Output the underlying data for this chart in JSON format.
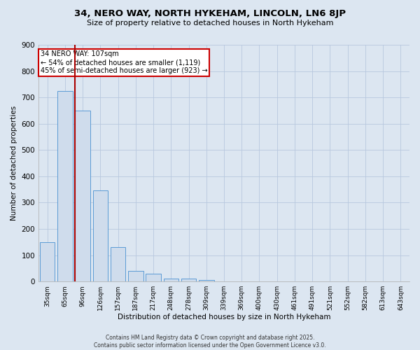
{
  "title1": "34, NERO WAY, NORTH HYKEHAM, LINCOLN, LN6 8JP",
  "title2": "Size of property relative to detached houses in North Hykeham",
  "xlabel": "Distribution of detached houses by size in North Hykeham",
  "ylabel": "Number of detached properties",
  "categories": [
    "35sqm",
    "65sqm",
    "96sqm",
    "126sqm",
    "157sqm",
    "187sqm",
    "217sqm",
    "248sqm",
    "278sqm",
    "309sqm",
    "339sqm",
    "369sqm",
    "400sqm",
    "430sqm",
    "461sqm",
    "491sqm",
    "521sqm",
    "552sqm",
    "582sqm",
    "613sqm",
    "643sqm"
  ],
  "values": [
    150,
    725,
    650,
    345,
    130,
    40,
    30,
    12,
    10,
    5,
    0,
    0,
    0,
    0,
    0,
    0,
    0,
    0,
    0,
    0,
    0
  ],
  "bar_color": "#cfdcec",
  "bar_edge_color": "#5b9bd5",
  "grid_color": "#b8c8de",
  "bg_color": "#dce6f1",
  "vline_color": "#aa0000",
  "annotation_title": "34 NERO WAY: 107sqm",
  "annotation_line1": "← 54% of detached houses are smaller (1,119)",
  "annotation_line2": "45% of semi-detached houses are larger (923) →",
  "annotation_box_color": "#ffffff",
  "annotation_edge_color": "#cc0000",
  "footer_line1": "Contains HM Land Registry data © Crown copyright and database right 2025.",
  "footer_line2": "Contains public sector information licensed under the Open Government Licence v3.0.",
  "ylim": [
    0,
    900
  ],
  "yticks": [
    0,
    100,
    200,
    300,
    400,
    500,
    600,
    700,
    800,
    900
  ]
}
